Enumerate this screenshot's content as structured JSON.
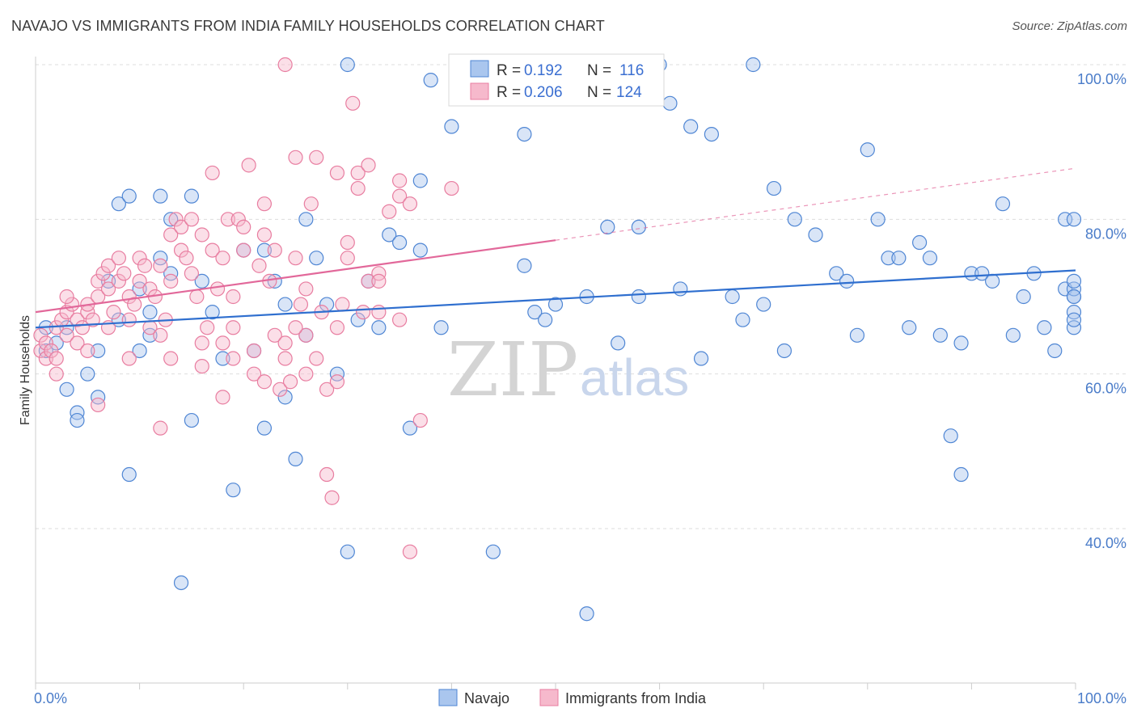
{
  "title": "NAVAJO VS IMMIGRANTS FROM INDIA FAMILY HOUSEHOLDS CORRELATION CHART",
  "source": "Source: ZipAtlas.com",
  "watermark": {
    "zip": "ZIP",
    "atlas": "atlas"
  },
  "colors": {
    "navajo_fill": "#aac6ee",
    "navajo_stroke": "#4f86d4",
    "navajo_line": "#2f6fcf",
    "india_fill": "#f6b9cc",
    "india_stroke": "#e87da0",
    "india_line": "#e2689a",
    "grid": "#dddddd",
    "tick_label": "#4a7cc9"
  },
  "legend": {
    "rows": [
      {
        "r_label": "R =",
        "r_value": "0.192",
        "n_label": "N =",
        "n_value": "116"
      },
      {
        "r_label": "R =",
        "r_value": "0.206",
        "n_label": "N =",
        "n_value": "124"
      }
    ]
  },
  "chart_data": {
    "type": "scatter",
    "ylabel": "Family Households",
    "xlim": [
      0,
      100
    ],
    "ylim": [
      20,
      103
    ],
    "x_tick_labels": [
      "0.0%",
      "100.0%"
    ],
    "y_ticks": [
      {
        "value": 100,
        "label": "100.0%"
      },
      {
        "value": 80,
        "label": "80.0%"
      },
      {
        "value": 60,
        "label": "60.0%"
      },
      {
        "value": 40,
        "label": "40.0%"
      }
    ],
    "grid": "horizontal-dashed",
    "legend_placement": "top-center",
    "series": [
      {
        "name": "Navajo",
        "trend": {
          "x0": 0,
          "y0": 66.0,
          "x1": 100,
          "y1": 73.4
        },
        "points": [
          [
            1,
            66
          ],
          [
            1,
            63
          ],
          [
            2,
            64
          ],
          [
            3,
            66
          ],
          [
            3,
            58
          ],
          [
            4,
            55
          ],
          [
            4,
            54
          ],
          [
            5,
            60
          ],
          [
            6,
            63
          ],
          [
            6,
            57
          ],
          [
            7,
            72
          ],
          [
            8,
            82
          ],
          [
            8,
            67
          ],
          [
            9,
            47
          ],
          [
            9,
            83
          ],
          [
            10,
            71
          ],
          [
            10,
            63
          ],
          [
            11,
            65
          ],
          [
            11,
            68
          ],
          [
            12,
            83
          ],
          [
            12,
            75
          ],
          [
            13,
            73
          ],
          [
            13,
            80
          ],
          [
            14,
            33
          ],
          [
            15,
            83
          ],
          [
            15,
            54
          ],
          [
            16,
            72
          ],
          [
            17,
            68
          ],
          [
            18,
            62
          ],
          [
            19,
            45
          ],
          [
            20,
            76
          ],
          [
            21,
            63
          ],
          [
            22,
            53
          ],
          [
            22,
            76
          ],
          [
            23,
            72
          ],
          [
            24,
            69
          ],
          [
            24,
            57
          ],
          [
            25,
            49
          ],
          [
            26,
            65
          ],
          [
            27,
            75
          ],
          [
            28,
            69
          ],
          [
            29,
            60
          ],
          [
            30,
            37
          ],
          [
            31,
            67
          ],
          [
            32,
            72
          ],
          [
            33,
            66
          ],
          [
            34,
            78
          ],
          [
            35,
            77
          ],
          [
            36,
            53
          ],
          [
            37,
            85
          ],
          [
            38,
            98
          ],
          [
            39,
            66
          ],
          [
            40,
            92
          ],
          [
            44,
            37
          ],
          [
            47,
            74
          ],
          [
            48,
            68
          ],
          [
            49,
            67
          ],
          [
            50,
            69
          ],
          [
            53,
            29
          ],
          [
            53,
            70
          ],
          [
            55,
            79
          ],
          [
            56,
            64
          ],
          [
            58,
            70
          ],
          [
            60,
            100
          ],
          [
            61,
            95
          ],
          [
            62,
            71
          ],
          [
            63,
            92
          ],
          [
            64,
            62
          ],
          [
            65,
            91
          ],
          [
            67,
            70
          ],
          [
            68,
            67
          ],
          [
            69,
            100
          ],
          [
            70,
            69
          ],
          [
            71,
            84
          ],
          [
            72,
            63
          ],
          [
            73,
            80
          ],
          [
            75,
            78
          ],
          [
            77,
            73
          ],
          [
            78,
            72
          ],
          [
            79,
            65
          ],
          [
            80,
            89
          ],
          [
            81,
            80
          ],
          [
            82,
            75
          ],
          [
            83,
            75
          ],
          [
            84,
            66
          ],
          [
            85,
            77
          ],
          [
            86,
            75
          ],
          [
            87,
            65
          ],
          [
            88,
            52
          ],
          [
            89,
            64
          ],
          [
            89,
            47
          ],
          [
            90,
            73
          ],
          [
            91,
            73
          ],
          [
            92,
            72
          ],
          [
            93,
            82
          ],
          [
            94,
            65
          ],
          [
            95,
            70
          ],
          [
            96,
            73
          ],
          [
            97,
            66
          ],
          [
            98,
            63
          ],
          [
            99,
            71
          ],
          [
            99,
            80
          ],
          [
            100,
            68
          ],
          [
            100,
            70
          ],
          [
            100,
            66
          ],
          [
            101,
            71
          ],
          [
            102,
            70
          ],
          [
            103,
            67
          ],
          [
            104,
            80
          ],
          [
            105,
            72
          ],
          [
            30,
            100
          ],
          [
            37,
            76
          ],
          [
            47,
            91
          ],
          [
            26,
            80
          ],
          [
            58,
            79
          ],
          [
            45,
            100
          ]
        ]
      },
      {
        "name": "Immigrants from India",
        "trend": {
          "x0": 0,
          "y0": 68.0,
          "x1": 50,
          "y1": 77.3
        },
        "trend_extension": {
          "x0": 50,
          "y0": 77.3,
          "x1": 100,
          "y1": 86.6
        },
        "points": [
          [
            0.5,
            65
          ],
          [
            0.5,
            63
          ],
          [
            1,
            62
          ],
          [
            1,
            64
          ],
          [
            1.5,
            63
          ],
          [
            2,
            66
          ],
          [
            2,
            62
          ],
          [
            2.5,
            67
          ],
          [
            3,
            65
          ],
          [
            3,
            68
          ],
          [
            3.5,
            69
          ],
          [
            4,
            67
          ],
          [
            4,
            64
          ],
          [
            4.5,
            66
          ],
          [
            5,
            68
          ],
          [
            5,
            69
          ],
          [
            5.5,
            67
          ],
          [
            6,
            70
          ],
          [
            6,
            72
          ],
          [
            6.5,
            73
          ],
          [
            7,
            71
          ],
          [
            7,
            74
          ],
          [
            7.5,
            68
          ],
          [
            8,
            75
          ],
          [
            8,
            72
          ],
          [
            8.5,
            73
          ],
          [
            9,
            70
          ],
          [
            9,
            67
          ],
          [
            9.5,
            69
          ],
          [
            10,
            72
          ],
          [
            10,
            75
          ],
          [
            10.5,
            74
          ],
          [
            11,
            66
          ],
          [
            11,
            71
          ],
          [
            11.5,
            70
          ],
          [
            12,
            74
          ],
          [
            12,
            65
          ],
          [
            12.5,
            67
          ],
          [
            13,
            72
          ],
          [
            13,
            78
          ],
          [
            13.5,
            80
          ],
          [
            14,
            76
          ],
          [
            14,
            79
          ],
          [
            14.5,
            75
          ],
          [
            15,
            73
          ],
          [
            15,
            80
          ],
          [
            15.5,
            70
          ],
          [
            16,
            78
          ],
          [
            16,
            64
          ],
          [
            16.5,
            66
          ],
          [
            17,
            86
          ],
          [
            17,
            76
          ],
          [
            17.5,
            71
          ],
          [
            18,
            64
          ],
          [
            18,
            75
          ],
          [
            18.5,
            80
          ],
          [
            19,
            62
          ],
          [
            19,
            66
          ],
          [
            19.5,
            80
          ],
          [
            20,
            79
          ],
          [
            20,
            76
          ],
          [
            20.5,
            87
          ],
          [
            21,
            60
          ],
          [
            21,
            63
          ],
          [
            21.5,
            74
          ],
          [
            22,
            78
          ],
          [
            22,
            59
          ],
          [
            22.5,
            72
          ],
          [
            23,
            76
          ],
          [
            23,
            65
          ],
          [
            23.5,
            58
          ],
          [
            24,
            100
          ],
          [
            24,
            62
          ],
          [
            24.5,
            59
          ],
          [
            25,
            88
          ],
          [
            25,
            75
          ],
          [
            25.5,
            69
          ],
          [
            26,
            60
          ],
          [
            26,
            65
          ],
          [
            26.5,
            82
          ],
          [
            27,
            88
          ],
          [
            27,
            62
          ],
          [
            27.5,
            68
          ],
          [
            28,
            58
          ],
          [
            28,
            47
          ],
          [
            28.5,
            44
          ],
          [
            29,
            86
          ],
          [
            29,
            66
          ],
          [
            29.5,
            69
          ],
          [
            30,
            77
          ],
          [
            30,
            75
          ],
          [
            30.5,
            95
          ],
          [
            31,
            84
          ],
          [
            31,
            86
          ],
          [
            31.5,
            68
          ],
          [
            32,
            72
          ],
          [
            32,
            87
          ],
          [
            33,
            73
          ],
          [
            33,
            68
          ],
          [
            34,
            81
          ],
          [
            35,
            83
          ],
          [
            35,
            67
          ],
          [
            36,
            82
          ],
          [
            36,
            37
          ],
          [
            37,
            54
          ],
          [
            40,
            84
          ],
          [
            6,
            56
          ],
          [
            9,
            62
          ],
          [
            12,
            53
          ],
          [
            18,
            57
          ],
          [
            22,
            82
          ],
          [
            24,
            64
          ],
          [
            26,
            71
          ],
          [
            29,
            59
          ],
          [
            33,
            72
          ],
          [
            35,
            85
          ],
          [
            7,
            66
          ],
          [
            5,
            63
          ],
          [
            3,
            70
          ],
          [
            2,
            60
          ],
          [
            13,
            62
          ],
          [
            16,
            61
          ],
          [
            19,
            70
          ],
          [
            25,
            66
          ]
        ]
      }
    ]
  },
  "bottom_legend": [
    {
      "label": "Navajo"
    },
    {
      "label": "Immigrants from India"
    }
  ]
}
